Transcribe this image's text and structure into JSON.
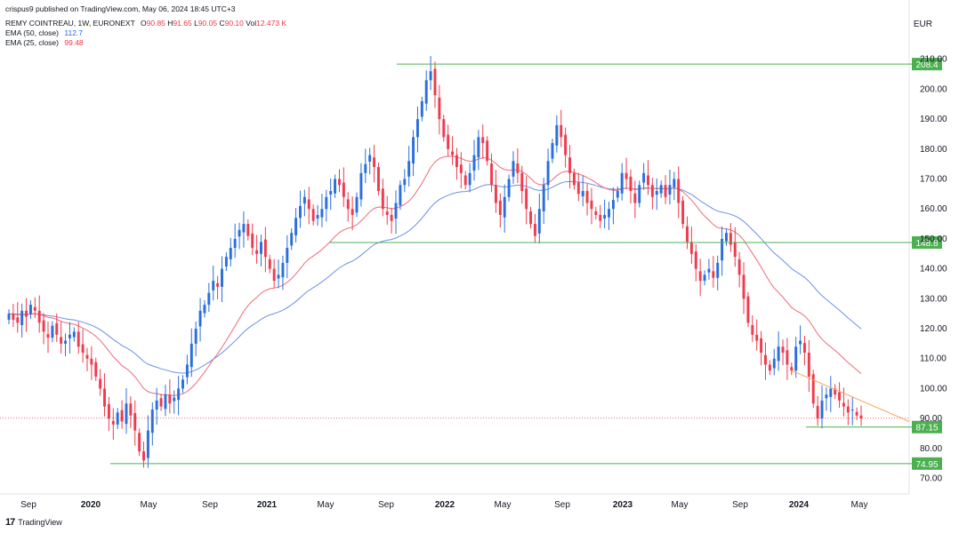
{
  "publish_line": "crispus9 published on TradingView.com, May 06, 2024 18:45 UTC+3",
  "header": {
    "symbol_line": "REMY COINTREAU, 1W, EURONEXT",
    "ohlc": {
      "o_label": "O",
      "o": "90.85",
      "h_label": "H",
      "h": "91.65",
      "l_label": "L",
      "l": "90.05",
      "c_label": "C",
      "c": "90.10",
      "vol_label": "Vol",
      "vol": "12.473 K"
    },
    "ema50": {
      "label": "EMA (50, close)",
      "value": "112.7"
    },
    "ema25": {
      "label": "EMA (25, close)",
      "value": "99.48"
    }
  },
  "currency": "EUR",
  "footer": {
    "brand": "TradingView",
    "logo": "17"
  },
  "colors": {
    "up": "#2a6fdb",
    "down": "#ef3b4d",
    "ema50": "#6b8fe8",
    "ema25": "#ef6a78",
    "level": "#4caf50",
    "level_label_bg": "#4caf50",
    "trend": "#f7a35c",
    "price_line": "#f23645",
    "axis_text": "#131722"
  },
  "chart_data": {
    "type": "candlestick",
    "x_axis_labels": [
      "Sep",
      "2020",
      "May",
      "Sep",
      "2021",
      "May",
      "Sep",
      "2022",
      "May",
      "Sep",
      "2023",
      "May",
      "Sep",
      "2024",
      "May"
    ],
    "x_axis_bold": [
      "2020",
      "2021",
      "2022",
      "2023",
      "2024"
    ],
    "ylim": [
      66,
      212
    ],
    "y_ticks": [
      "70.00",
      "80.00",
      "90.00",
      "100.00",
      "110.00",
      "120.00",
      "130.00",
      "140.00",
      "150.00",
      "160.00",
      "170.00",
      "180.00",
      "190.00",
      "200.00",
      "210.00"
    ],
    "closes": [
      125,
      123,
      122,
      126,
      124,
      128,
      126,
      122,
      119,
      117,
      121,
      118,
      115,
      116,
      118,
      119,
      114,
      112,
      110,
      108,
      104,
      100,
      94,
      90,
      88,
      92,
      89,
      95,
      91,
      86,
      79,
      76,
      86,
      93,
      96,
      94,
      98,
      95,
      97,
      100,
      103,
      108,
      115,
      120,
      126,
      128,
      132,
      136,
      134,
      140,
      144,
      147,
      150,
      153,
      155,
      151,
      147,
      145,
      149,
      144,
      140,
      136,
      138,
      142,
      147,
      152,
      157,
      161,
      164,
      160,
      156,
      158,
      160,
      164,
      166,
      170,
      168,
      164,
      160,
      158,
      164,
      172,
      175,
      178,
      174,
      166,
      160,
      158,
      156,
      162,
      168,
      170,
      176,
      184,
      190,
      196,
      203,
      206,
      198,
      190,
      184,
      180,
      178,
      174,
      172,
      168,
      172,
      178,
      184,
      182,
      176,
      168,
      162,
      158,
      164,
      170,
      176,
      172,
      166,
      160,
      155,
      151,
      160,
      168,
      176,
      182,
      188,
      184,
      178,
      172,
      168,
      165,
      166,
      162,
      160,
      158,
      156,
      158,
      160,
      163,
      166,
      172,
      170,
      166,
      162,
      168,
      172,
      168,
      164,
      166,
      168,
      164,
      168,
      170,
      162,
      155,
      149,
      145,
      140,
      136,
      138,
      140,
      137,
      142,
      150,
      152,
      148,
      144,
      138,
      130,
      122,
      118,
      116,
      112,
      108,
      106,
      110,
      114,
      112,
      108,
      106,
      114,
      116,
      112,
      104,
      95,
      90,
      96,
      98,
      100,
      98,
      96,
      94,
      92,
      93,
      91,
      90
    ],
    "ema50_last": 112.7,
    "ema25_last": 99.48,
    "levels": [
      {
        "value": 208.4,
        "label": "208.4"
      },
      {
        "value": 148.8,
        "label": "148.8"
      },
      {
        "value": 87.15,
        "label": "87.15"
      },
      {
        "value": 74.95,
        "label": "74.95"
      }
    ],
    "last_price": 90.1,
    "trendline": {
      "from_index": 180,
      "from_value": 106,
      "to_value": 89
    }
  }
}
